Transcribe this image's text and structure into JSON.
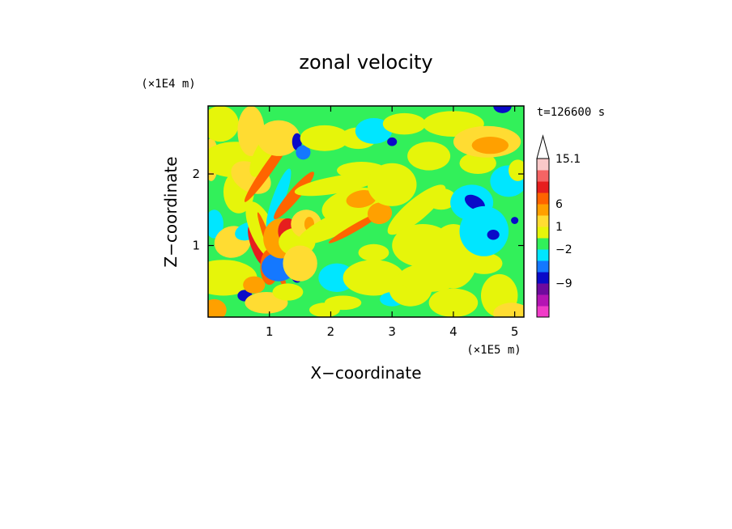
{
  "chart_data": {
    "type": "heatmap",
    "title": "zonal velocity",
    "xlabel": "X−coordinate",
    "ylabel": "Z−coordinate",
    "x_scale_label": "(×1E5 m)",
    "y_scale_label": "(×1E4 m)",
    "time_label": "t=126600 s",
    "xlim": [
      0,
      5.15
    ],
    "ylim": [
      0,
      2.95
    ],
    "x_ticks": [
      1,
      2,
      3,
      4,
      5
    ],
    "y_ticks": [
      1,
      2
    ],
    "x_tick_labels": [
      "1",
      "2",
      "3",
      "4",
      "5"
    ],
    "y_tick_labels": [
      "1",
      "2"
    ],
    "colorbar": {
      "colors": [
        "#f03cc8",
        "#b414b4",
        "#6e0a9e",
        "#0a0ac8",
        "#1478ff",
        "#00e6ff",
        "#32f05a",
        "#e6f50a",
        "#ffdc32",
        "#ffa000",
        "#ff6400",
        "#e61e1e",
        "#f56464",
        "#fac8c8"
      ],
      "tick_labels": [
        "15.1",
        "6",
        "1",
        "−2",
        "−9"
      ],
      "tick_values": [
        15.1,
        6,
        1,
        -2,
        -9
      ],
      "extend_top": true
    },
    "background_color": "#32f05a",
    "field_blobs": [
      {
        "x": 0.05,
        "y": 2.2,
        "rx": 0.12,
        "ry": 0.3,
        "v": 2,
        "r": 0
      },
      {
        "x": 0.1,
        "y": 0.1,
        "rx": 0.2,
        "ry": 0.15,
        "v": 3,
        "r": 0
      },
      {
        "x": 0.1,
        "y": 1.3,
        "rx": 0.15,
        "ry": 0.2,
        "v": -1,
        "r": 0
      },
      {
        "x": 0.2,
        "y": 2.7,
        "rx": 0.3,
        "ry": 0.25,
        "v": 1,
        "r": 0
      },
      {
        "x": 0.25,
        "y": 0.55,
        "rx": 0.55,
        "ry": 0.25,
        "v": 1,
        "r": 0
      },
      {
        "x": 0.4,
        "y": 1.05,
        "rx": 0.3,
        "ry": 0.22,
        "v": 2,
        "r": -15
      },
      {
        "x": 0.45,
        "y": 2.2,
        "rx": 0.55,
        "ry": 0.25,
        "v": 1,
        "r": 0
      },
      {
        "x": 0.5,
        "y": 1.75,
        "rx": 0.25,
        "ry": 0.3,
        "v": 1,
        "r": 0
      },
      {
        "x": 0.6,
        "y": 0.3,
        "rx": 0.12,
        "ry": 0.08,
        "v": -3,
        "r": 0
      },
      {
        "x": 0.65,
        "y": 1.2,
        "rx": 0.22,
        "ry": 0.12,
        "v": -1,
        "r": -20
      },
      {
        "x": 0.7,
        "y": 2.6,
        "rx": 0.22,
        "ry": 0.35,
        "v": 2,
        "r": 0
      },
      {
        "x": 0.7,
        "y": 1.95,
        "rx": 0.35,
        "ry": 0.2,
        "v": 2,
        "r": 30
      },
      {
        "x": 0.75,
        "y": 0.45,
        "rx": 0.18,
        "ry": 0.12,
        "v": 3,
        "r": 0
      },
      {
        "x": 0.8,
        "y": 1.0,
        "rx": 0.1,
        "ry": 0.3,
        "v": 5,
        "r": -20
      },
      {
        "x": 0.9,
        "y": 1.2,
        "rx": 0.2,
        "ry": 0.45,
        "v": 1,
        "r": -25
      },
      {
        "x": 0.95,
        "y": 0.2,
        "rx": 0.35,
        "ry": 0.15,
        "v": 2,
        "r": 0
      },
      {
        "x": 0.95,
        "y": 2.3,
        "rx": 0.45,
        "ry": 0.15,
        "v": 1,
        "r": -60
      },
      {
        "x": 1.0,
        "y": 2.1,
        "rx": 0.7,
        "ry": 0.07,
        "v": 4,
        "r": -55
      },
      {
        "x": 1.0,
        "y": 0.7,
        "rx": 0.15,
        "ry": 0.25,
        "v": 4,
        "r": 0
      },
      {
        "x": 1.05,
        "y": 0.9,
        "rx": 0.7,
        "ry": 0.05,
        "v": 4,
        "r": 70
      },
      {
        "x": 1.15,
        "y": 0.7,
        "rx": 0.28,
        "ry": 0.2,
        "v": -2,
        "r": 0
      },
      {
        "x": 1.15,
        "y": 1.65,
        "rx": 0.1,
        "ry": 0.45,
        "v": -1,
        "r": 20
      },
      {
        "x": 1.15,
        "y": 2.5,
        "rx": 0.35,
        "ry": 0.25,
        "v": 2,
        "r": 0
      },
      {
        "x": 1.2,
        "y": 1.1,
        "rx": 0.3,
        "ry": 0.28,
        "v": 3,
        "r": 0
      },
      {
        "x": 1.3,
        "y": 1.2,
        "rx": 0.16,
        "ry": 0.18,
        "v": 5,
        "r": 0
      },
      {
        "x": 1.3,
        "y": 0.35,
        "rx": 0.25,
        "ry": 0.12,
        "v": 1,
        "r": 0
      },
      {
        "x": 1.4,
        "y": 1.7,
        "rx": 0.5,
        "ry": 0.08,
        "v": 4,
        "r": -50
      },
      {
        "x": 1.45,
        "y": 1.05,
        "rx": 0.3,
        "ry": 0.2,
        "v": 1,
        "r": 0
      },
      {
        "x": 1.45,
        "y": 2.45,
        "rx": 0.08,
        "ry": 0.12,
        "v": -3,
        "r": 0
      },
      {
        "x": 1.45,
        "y": 0.6,
        "rx": 0.1,
        "ry": 0.12,
        "v": -3,
        "r": 0
      },
      {
        "x": 1.5,
        "y": 0.75,
        "rx": 0.28,
        "ry": 0.25,
        "v": 2,
        "r": 0
      },
      {
        "x": 1.55,
        "y": 2.3,
        "rx": 0.12,
        "ry": 0.1,
        "v": -2,
        "r": 0
      },
      {
        "x": 1.6,
        "y": 1.3,
        "rx": 0.25,
        "ry": 0.2,
        "v": 2,
        "r": 0
      },
      {
        "x": 1.65,
        "y": 1.3,
        "rx": 0.08,
        "ry": 0.1,
        "v": 3,
        "r": 0
      },
      {
        "x": 1.9,
        "y": 2.5,
        "rx": 0.4,
        "ry": 0.18,
        "v": 1,
        "r": 0
      },
      {
        "x": 1.9,
        "y": 0.1,
        "rx": 0.25,
        "ry": 0.1,
        "v": 1,
        "r": 0
      },
      {
        "x": 2.1,
        "y": 0.55,
        "rx": 0.3,
        "ry": 0.2,
        "v": -1,
        "r": 0
      },
      {
        "x": 2.1,
        "y": 1.85,
        "rx": 0.7,
        "ry": 0.12,
        "v": 1,
        "r": -10
      },
      {
        "x": 2.1,
        "y": 1.3,
        "rx": 0.7,
        "ry": 0.15,
        "v": 1,
        "r": -25
      },
      {
        "x": 2.2,
        "y": 0.2,
        "rx": 0.3,
        "ry": 0.1,
        "v": 1,
        "r": 0
      },
      {
        "x": 2.4,
        "y": 1.55,
        "rx": 0.55,
        "ry": 0.25,
        "v": 1,
        "r": -10
      },
      {
        "x": 2.4,
        "y": 1.25,
        "rx": 0.5,
        "ry": 0.05,
        "v": 4,
        "r": -30
      },
      {
        "x": 2.45,
        "y": 2.5,
        "rx": 0.3,
        "ry": 0.15,
        "v": 1,
        "r": 0
      },
      {
        "x": 2.5,
        "y": 1.65,
        "rx": 0.25,
        "ry": 0.12,
        "v": 3,
        "r": -10
      },
      {
        "x": 2.5,
        "y": 2.05,
        "rx": 0.4,
        "ry": 0.12,
        "v": 1,
        "r": 0
      },
      {
        "x": 2.7,
        "y": 0.55,
        "rx": 0.5,
        "ry": 0.25,
        "v": 1,
        "r": 0
      },
      {
        "x": 2.7,
        "y": 0.9,
        "rx": 0.25,
        "ry": 0.12,
        "v": 1,
        "r": 0
      },
      {
        "x": 2.7,
        "y": 2.6,
        "rx": 0.3,
        "ry": 0.18,
        "v": -1,
        "r": 0
      },
      {
        "x": 2.8,
        "y": 1.45,
        "rx": 0.2,
        "ry": 0.15,
        "v": 3,
        "r": -10
      },
      {
        "x": 3.0,
        "y": 1.85,
        "rx": 0.4,
        "ry": 0.3,
        "v": 1,
        "r": 0
      },
      {
        "x": 3.0,
        "y": 2.45,
        "rx": 0.08,
        "ry": 0.06,
        "v": -3,
        "r": 0
      },
      {
        "x": 3.0,
        "y": 0.25,
        "rx": 0.2,
        "ry": 0.1,
        "v": -1,
        "r": 0
      },
      {
        "x": 3.2,
        "y": 2.7,
        "rx": 0.35,
        "ry": 0.15,
        "v": 1,
        "r": 0
      },
      {
        "x": 3.3,
        "y": 0.4,
        "rx": 0.35,
        "ry": 0.25,
        "v": 1,
        "r": 0
      },
      {
        "x": 3.4,
        "y": 1.5,
        "rx": 0.6,
        "ry": 0.15,
        "v": 1,
        "r": -40
      },
      {
        "x": 3.5,
        "y": 1.0,
        "rx": 0.5,
        "ry": 0.3,
        "v": 1,
        "r": 0
      },
      {
        "x": 3.6,
        "y": 0.55,
        "rx": 0.5,
        "ry": 0.2,
        "v": 1,
        "r": 0
      },
      {
        "x": 3.6,
        "y": 2.25,
        "rx": 0.35,
        "ry": 0.2,
        "v": 1,
        "r": 0
      },
      {
        "x": 3.8,
        "y": 1.65,
        "rx": 0.25,
        "ry": 0.15,
        "v": 1,
        "r": 0
      },
      {
        "x": 4.0,
        "y": 0.2,
        "rx": 0.4,
        "ry": 0.2,
        "v": 1,
        "r": 0
      },
      {
        "x": 4.0,
        "y": 2.7,
        "rx": 0.5,
        "ry": 0.18,
        "v": 1,
        "r": 0
      },
      {
        "x": 4.0,
        "y": 0.85,
        "rx": 0.4,
        "ry": 0.45,
        "v": 1,
        "r": 0
      },
      {
        "x": 4.3,
        "y": 1.6,
        "rx": 0.35,
        "ry": 0.25,
        "v": -1,
        "r": 0
      },
      {
        "x": 4.35,
        "y": 1.6,
        "rx": 0.18,
        "ry": 0.09,
        "v": -3,
        "r": 30
      },
      {
        "x": 4.4,
        "y": 2.15,
        "rx": 0.3,
        "ry": 0.15,
        "v": 1,
        "r": 0
      },
      {
        "x": 4.5,
        "y": 0.75,
        "rx": 0.3,
        "ry": 0.15,
        "v": 1,
        "r": 0
      },
      {
        "x": 4.5,
        "y": 1.2,
        "rx": 0.4,
        "ry": 0.35,
        "v": -1,
        "r": 0
      },
      {
        "x": 4.55,
        "y": 2.45,
        "rx": 0.55,
        "ry": 0.22,
        "v": 2,
        "r": 0
      },
      {
        "x": 4.6,
        "y": 2.4,
        "rx": 0.3,
        "ry": 0.12,
        "v": 3,
        "r": 0
      },
      {
        "x": 4.65,
        "y": 1.15,
        "rx": 0.1,
        "ry": 0.07,
        "v": -3,
        "r": 0
      },
      {
        "x": 4.75,
        "y": 0.3,
        "rx": 0.3,
        "ry": 0.3,
        "v": 1,
        "r": 0
      },
      {
        "x": 4.8,
        "y": 2.95,
        "rx": 0.15,
        "ry": 0.1,
        "v": -3,
        "r": 0
      },
      {
        "x": 4.9,
        "y": 1.9,
        "rx": 0.3,
        "ry": 0.22,
        "v": -1,
        "r": 0
      },
      {
        "x": 4.95,
        "y": 0.05,
        "rx": 0.3,
        "ry": 0.15,
        "v": 2,
        "r": 0
      },
      {
        "x": 5.0,
        "y": 1.35,
        "rx": 0.06,
        "ry": 0.05,
        "v": -3,
        "r": 0
      },
      {
        "x": 5.05,
        "y": 2.05,
        "rx": 0.15,
        "ry": 0.15,
        "v": 1,
        "r": 0
      }
    ],
    "grid": false,
    "legend_placement": "right colorbar"
  }
}
